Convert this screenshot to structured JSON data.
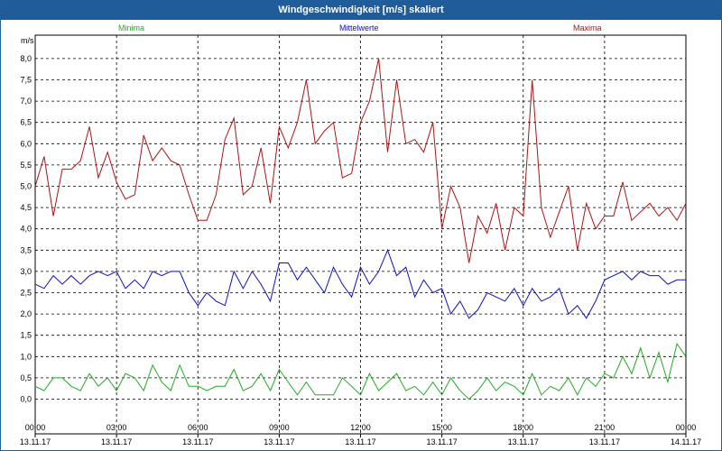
{
  "window": {
    "title": "Windgeschwindigkeit [m/s] skaliert"
  },
  "colors": {
    "minima": "#22aa22",
    "mittelwerte": "#1010bb",
    "maxima": "#aa1515",
    "titlebar": "#1f5c99"
  },
  "chart_data": {
    "type": "line",
    "title": "Windgeschwindigkeit [m/s] skaliert",
    "ylabel": "m/s",
    "xlabel": "",
    "ylim": [
      -0.4,
      8.5
    ],
    "xlim_hours": [
      0,
      24
    ],
    "grid": true,
    "legend_position": "top",
    "y_ticks": [
      "0,0",
      "0,5",
      "1,0",
      "1,5",
      "2,0",
      "2,5",
      "3,0",
      "3,5",
      "4,0",
      "4,5",
      "5,0",
      "5,5",
      "6,0",
      "6,5",
      "7,0",
      "7,5",
      "8,0"
    ],
    "x_ticks": [
      {
        "time": "00:00",
        "date": "13.11.17"
      },
      {
        "time": "03:00",
        "date": "13.11.17"
      },
      {
        "time": "06:00",
        "date": "13.11.17"
      },
      {
        "time": "09:00",
        "date": "13.11.17"
      },
      {
        "time": "12:00",
        "date": "13.11.17"
      },
      {
        "time": "15:00",
        "date": "13.11.17"
      },
      {
        "time": "18:00",
        "date": "13.11.17"
      },
      {
        "time": "21:00",
        "date": "13.11.17"
      },
      {
        "time": "00:00",
        "date": "14.11.17"
      }
    ],
    "series": [
      {
        "name": "Minima",
        "color": "#22aa22",
        "x_hours": [
          0,
          0.33,
          0.67,
          1,
          1.33,
          1.67,
          2,
          2.33,
          2.67,
          3,
          3.33,
          3.67,
          4,
          4.33,
          4.67,
          5,
          5.33,
          5.67,
          6,
          6.33,
          6.67,
          7,
          7.33,
          7.67,
          8,
          8.33,
          8.67,
          9,
          9.33,
          9.67,
          10,
          10.33,
          10.67,
          11,
          11.33,
          11.67,
          12,
          12.33,
          12.67,
          13,
          13.33,
          13.67,
          14,
          14.33,
          14.67,
          15,
          15.33,
          15.67,
          16,
          16.33,
          16.67,
          17,
          17.33,
          17.67,
          18,
          18.33,
          18.67,
          19,
          19.33,
          19.67,
          20,
          20.33,
          20.67,
          21,
          21.33,
          21.67,
          22,
          22.33,
          22.67,
          23,
          23.33,
          23.67,
          24
        ],
        "values": [
          0.3,
          0.2,
          0.5,
          0.5,
          0.3,
          0.2,
          0.6,
          0.3,
          0.5,
          0.2,
          0.6,
          0.5,
          0.2,
          0.8,
          0.4,
          0.2,
          0.8,
          0.3,
          0.3,
          0.2,
          0.3,
          0.3,
          0.7,
          0.2,
          0.3,
          0.6,
          0.2,
          0.7,
          0.4,
          0.1,
          0.4,
          0.1,
          0.1,
          0.1,
          0.5,
          0.3,
          0.1,
          0.6,
          0.2,
          0.4,
          0.6,
          0.2,
          0.3,
          0.1,
          0.4,
          0.1,
          0.5,
          0.2,
          0.0,
          0.2,
          0.5,
          0.2,
          0.4,
          0.3,
          0.1,
          0.6,
          0.1,
          0.3,
          0.2,
          0.5,
          0.1,
          0.5,
          0.3,
          0.6,
          0.5,
          1.0,
          0.6,
          1.2,
          0.5,
          1.1,
          0.4,
          1.3,
          1.0
        ]
      },
      {
        "name": "Mittelwerte",
        "color": "#1010bb",
        "x_hours": [
          0,
          0.33,
          0.67,
          1,
          1.33,
          1.67,
          2,
          2.33,
          2.67,
          3,
          3.33,
          3.67,
          4,
          4.33,
          4.67,
          5,
          5.33,
          5.67,
          6,
          6.33,
          6.67,
          7,
          7.33,
          7.67,
          8,
          8.33,
          8.67,
          9,
          9.33,
          9.67,
          10,
          10.33,
          10.67,
          11,
          11.33,
          11.67,
          12,
          12.33,
          12.67,
          13,
          13.33,
          13.67,
          14,
          14.33,
          14.67,
          15,
          15.33,
          15.67,
          16,
          16.33,
          16.67,
          17,
          17.33,
          17.67,
          18,
          18.33,
          18.67,
          19,
          19.33,
          19.67,
          20,
          20.33,
          20.67,
          21,
          21.33,
          21.67,
          22,
          22.33,
          22.67,
          23,
          23.33,
          23.67,
          24
        ],
        "values": [
          2.7,
          2.6,
          2.9,
          2.7,
          2.9,
          2.7,
          2.9,
          3.0,
          2.9,
          3.0,
          2.6,
          2.8,
          2.6,
          3.0,
          2.9,
          3.0,
          3.0,
          2.5,
          2.2,
          2.5,
          2.3,
          2.2,
          3.0,
          2.6,
          3.0,
          2.7,
          2.3,
          3.2,
          3.2,
          2.8,
          3.1,
          2.8,
          2.5,
          3.1,
          2.7,
          2.4,
          3.1,
          2.7,
          3.0,
          3.5,
          2.9,
          3.1,
          2.4,
          2.8,
          2.5,
          2.6,
          2.0,
          2.3,
          1.9,
          2.1,
          2.5,
          2.4,
          2.3,
          2.6,
          2.2,
          2.6,
          2.3,
          2.4,
          2.6,
          2.0,
          2.2,
          1.9,
          2.3,
          2.8,
          2.9,
          3.0,
          2.8,
          3.0,
          2.9,
          2.9,
          2.7,
          2.8,
          2.8
        ]
      },
      {
        "name": "Maxima",
        "color": "#aa1515",
        "x_hours": [
          0,
          0.33,
          0.67,
          1,
          1.33,
          1.67,
          2,
          2.33,
          2.67,
          3,
          3.33,
          3.67,
          4,
          4.33,
          4.67,
          5,
          5.33,
          5.67,
          6,
          6.33,
          6.67,
          7,
          7.33,
          7.67,
          8,
          8.33,
          8.67,
          9,
          9.33,
          9.67,
          10,
          10.33,
          10.67,
          11,
          11.33,
          11.67,
          12,
          12.33,
          12.67,
          13,
          13.33,
          13.67,
          14,
          14.33,
          14.67,
          15,
          15.33,
          15.67,
          16,
          16.33,
          16.67,
          17,
          17.33,
          17.67,
          18,
          18.33,
          18.67,
          19,
          19.33,
          19.67,
          20,
          20.33,
          20.67,
          21,
          21.33,
          21.67,
          22,
          22.33,
          22.67,
          23,
          23.33,
          23.67,
          24
        ],
        "values": [
          5.0,
          5.7,
          4.3,
          5.4,
          5.4,
          5.6,
          6.4,
          5.2,
          5.8,
          5.1,
          4.7,
          4.8,
          6.2,
          5.6,
          5.9,
          5.6,
          5.5,
          4.8,
          4.2,
          4.2,
          4.8,
          6.1,
          6.6,
          4.8,
          5.0,
          5.9,
          4.6,
          6.4,
          5.9,
          6.5,
          7.5,
          6.0,
          6.3,
          6.5,
          5.2,
          5.3,
          6.5,
          7.0,
          8.0,
          5.8,
          7.5,
          6.0,
          6.1,
          5.8,
          6.5,
          4.0,
          5.0,
          4.5,
          3.2,
          4.3,
          3.9,
          4.6,
          3.5,
          4.5,
          4.3,
          7.5,
          4.5,
          3.8,
          4.4,
          5.0,
          3.5,
          4.6,
          4.0,
          4.3,
          4.3,
          5.1,
          4.2,
          4.4,
          4.6,
          4.3,
          4.5,
          4.2,
          4.6
        ]
      }
    ]
  }
}
